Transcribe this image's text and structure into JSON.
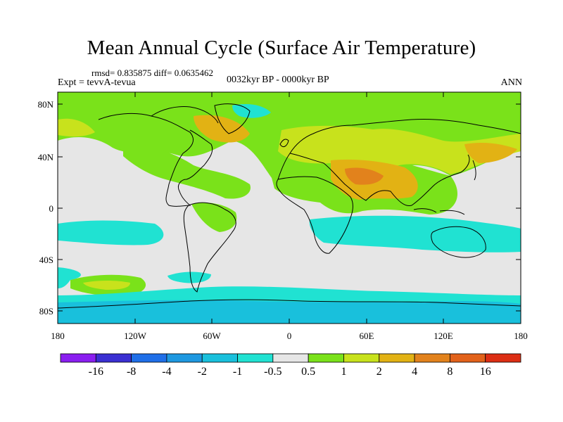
{
  "plot": {
    "title": "Mean Annual Cycle (Surface Air Temperature)",
    "stats": "rmsd= 0.835875 diff= 0.0635462",
    "experiment": "Expt = tevvA-tevua",
    "period": "0032kyr BP - 0000kyr BP",
    "season": "ANN"
  },
  "axes": {
    "lat_ticks": [
      "80N",
      "40N",
      "0",
      "40S",
      "80S"
    ],
    "lon_ticks": [
      "180",
      "120W",
      "60W",
      "0",
      "60E",
      "120E",
      "180"
    ]
  },
  "colorbar": {
    "labels": [
      "-16",
      "-8",
      "-4",
      "-2",
      "-1",
      "-0.5",
      "0.5",
      "1",
      "2",
      "4",
      "8",
      "16"
    ],
    "colors": [
      "#8a1ef0",
      "#3a2fd2",
      "#1f6fe8",
      "#1e98e0",
      "#19c0dc",
      "#20e2d2",
      "#e6e6e6",
      "#7ae21a",
      "#c8e21c",
      "#e2b214",
      "#e2821c",
      "#e2621a",
      "#dc2e14"
    ]
  },
  "chart_data": {
    "type": "heatmap",
    "title": "Mean Annual Cycle (Surface Air Temperature)",
    "variable": "Surface Air Temperature difference",
    "projection": "cylindrical equidistant",
    "lon_range": [
      -180,
      180
    ],
    "lat_range": [
      -90,
      90
    ],
    "levels": [
      -16,
      -8,
      -4,
      -2,
      -1,
      -0.5,
      0.5,
      1,
      2,
      4,
      8,
      16
    ],
    "regions": [
      {
        "area": "Arctic / Northern high latitudes",
        "class": "0.5 to 2"
      },
      {
        "area": "North Atlantic subpolar",
        "class": "2 to 4"
      },
      {
        "area": "Central Asia / Middle East",
        "class": "2 to 4"
      },
      {
        "area": "Tropical oceans",
        "class": "-0.5 to 0.5"
      },
      {
        "area": "Southern Ocean",
        "class": "-1 to -0.5"
      },
      {
        "area": "Antarctica margin",
        "class": "-2 to -1"
      },
      {
        "area": "South Pacific 40S",
        "class": "0.5 to 2"
      }
    ]
  }
}
